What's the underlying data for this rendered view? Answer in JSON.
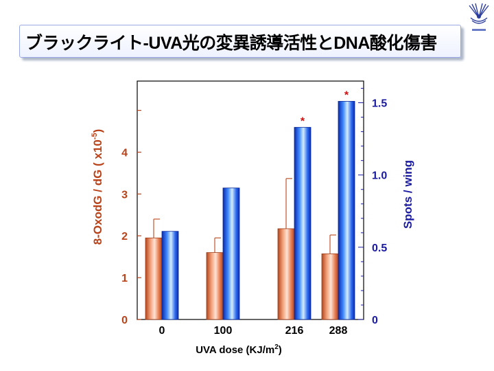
{
  "slide": {
    "title": "ブラックライト-UVA光の変異誘導活性とDNA酸化傷害"
  },
  "colors": {
    "left_series": "#d86a3c",
    "right_series": "#1f4fe0",
    "left_axis": "#b8431a",
    "right_axis": "#1a1aa0",
    "star": "#d01010"
  },
  "chart_data": {
    "type": "bar",
    "categories": [
      "0",
      "100",
      "216",
      "288"
    ],
    "xlabel": "UVA dose (KJ/m2)",
    "xlabel_main": "UVA dose (KJ/m",
    "xlabel_sup": "2",
    "xlabel_end": ")",
    "ylabel_left": "8-OxodG / dG ( x10-5)",
    "ylabel_left_main": "8-OxodG / dG ( x10",
    "ylabel_left_sup": "-5",
    "ylabel_left_end": ")",
    "ylabel_right": "Spots / wing",
    "ylim_left": [
      0,
      5.7
    ],
    "ylim_right": [
      0,
      1.65
    ],
    "yticks_left": [
      "0",
      "1",
      "2",
      "3",
      "4"
    ],
    "yticks_right": [
      "0",
      "0.5",
      "1.0",
      "1.5"
    ],
    "series": [
      {
        "axis": "left",
        "values": [
          1.95,
          1.6,
          2.17,
          1.57
        ],
        "error_upper": [
          0.45,
          0.35,
          1.2,
          0.45
        ]
      },
      {
        "axis": "right",
        "values": [
          0.61,
          0.91,
          1.33,
          1.51
        ],
        "significant": [
          false,
          false,
          true,
          true
        ]
      }
    ],
    "significance_marker": "*"
  }
}
